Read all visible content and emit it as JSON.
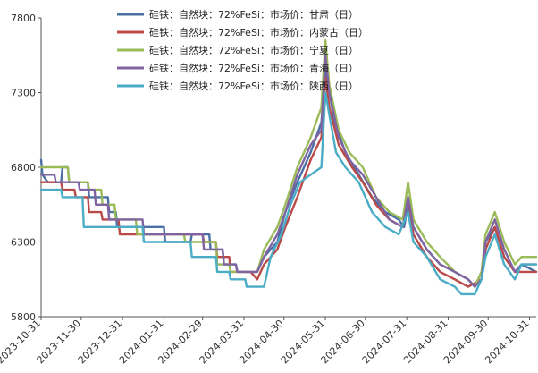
{
  "chart_data": {
    "type": "line",
    "title": "",
    "xlabel": "",
    "ylabel": "",
    "ylim": [
      5800,
      7800
    ],
    "y_ticks": [
      5800,
      6300,
      6800,
      7300,
      7800
    ],
    "x_ticks": [
      "2023-10-31",
      "2023-11-30",
      "2023-12-31",
      "2024-01-31",
      "2024-02-29",
      "2024-03-31",
      "2024-04-30",
      "2024-05-31",
      "2024-06-30",
      "2024-07-31",
      "2024-08-31",
      "2024-09-30",
      "2024-10-31"
    ],
    "xlim": [
      "2023-10-31",
      "2024-11-05"
    ],
    "grid": false,
    "legend_position": "top",
    "series": [
      {
        "name": "硅铁：自然块：72%FeSi：市场价：甘肃（日）",
        "color": "#4a6fa5",
        "points": [
          [
            "2023-10-31",
            6850
          ],
          [
            "2023-11-01",
            6750
          ],
          [
            "2023-11-05",
            6700
          ],
          [
            "2023-11-15",
            6700
          ],
          [
            "2023-11-16",
            6800
          ],
          [
            "2023-11-20",
            6800
          ],
          [
            "2023-11-21",
            6700
          ],
          [
            "2023-12-05",
            6700
          ],
          [
            "2023-12-06",
            6600
          ],
          [
            "2023-12-20",
            6600
          ],
          [
            "2023-12-21",
            6500
          ],
          [
            "2023-12-26",
            6500
          ],
          [
            "2023-12-27",
            6400
          ],
          [
            "2024-01-31",
            6400
          ],
          [
            "2024-02-01",
            6300
          ],
          [
            "2024-02-20",
            6300
          ],
          [
            "2024-02-21",
            6350
          ],
          [
            "2024-03-05",
            6350
          ],
          [
            "2024-03-06",
            6250
          ],
          [
            "2024-03-15",
            6250
          ],
          [
            "2024-03-16",
            6150
          ],
          [
            "2024-03-25",
            6150
          ],
          [
            "2024-03-26",
            6100
          ],
          [
            "2024-04-10",
            6100
          ],
          [
            "2024-04-15",
            6200
          ],
          [
            "2024-04-25",
            6300
          ],
          [
            "2024-05-01",
            6500
          ],
          [
            "2024-05-10",
            6700
          ],
          [
            "2024-05-20",
            6900
          ],
          [
            "2024-05-28",
            7100
          ],
          [
            "2024-05-31",
            7450
          ],
          [
            "2024-06-03",
            7300
          ],
          [
            "2024-06-07",
            7100
          ],
          [
            "2024-06-15",
            6900
          ],
          [
            "2024-06-25",
            6750
          ],
          [
            "2024-07-05",
            6600
          ],
          [
            "2024-07-15",
            6500
          ],
          [
            "2024-07-25",
            6450
          ],
          [
            "2024-07-29",
            6400
          ],
          [
            "2024-08-01",
            6550
          ],
          [
            "2024-08-05",
            6400
          ],
          [
            "2024-08-15",
            6250
          ],
          [
            "2024-08-25",
            6150
          ],
          [
            "2024-09-05",
            6100
          ],
          [
            "2024-09-15",
            6050
          ],
          [
            "2024-09-20",
            6000
          ],
          [
            "2024-09-25",
            6100
          ],
          [
            "2024-09-28",
            6300
          ],
          [
            "2024-10-05",
            6400
          ],
          [
            "2024-10-12",
            6200
          ],
          [
            "2024-10-20",
            6100
          ],
          [
            "2024-10-25",
            6150
          ],
          [
            "2024-11-05",
            6100
          ]
        ]
      },
      {
        "name": "硅铁：自然块：72%FeSi：市场价：内蒙古（日）",
        "color": "#b94a48",
        "points": [
          [
            "2023-10-31",
            6700
          ],
          [
            "2023-11-15",
            6700
          ],
          [
            "2023-11-16",
            6650
          ],
          [
            "2023-11-25",
            6650
          ],
          [
            "2023-11-26",
            6600
          ],
          [
            "2023-12-05",
            6600
          ],
          [
            "2023-12-06",
            6500
          ],
          [
            "2023-12-15",
            6500
          ],
          [
            "2023-12-16",
            6450
          ],
          [
            "2023-12-28",
            6450
          ],
          [
            "2023-12-29",
            6350
          ],
          [
            "2024-02-29",
            6350
          ],
          [
            "2024-03-01",
            6300
          ],
          [
            "2024-03-10",
            6300
          ],
          [
            "2024-03-11",
            6200
          ],
          [
            "2024-03-20",
            6200
          ],
          [
            "2024-03-21",
            6100
          ],
          [
            "2024-04-05",
            6100
          ],
          [
            "2024-04-10",
            6050
          ],
          [
            "2024-04-15",
            6150
          ],
          [
            "2024-04-25",
            6250
          ],
          [
            "2024-05-01",
            6400
          ],
          [
            "2024-05-10",
            6600
          ],
          [
            "2024-05-20",
            6850
          ],
          [
            "2024-05-28",
            7000
          ],
          [
            "2024-05-31",
            7400
          ],
          [
            "2024-06-03",
            7200
          ],
          [
            "2024-06-10",
            6950
          ],
          [
            "2024-06-20",
            6800
          ],
          [
            "2024-06-28",
            6700
          ],
          [
            "2024-07-08",
            6550
          ],
          [
            "2024-07-18",
            6450
          ],
          [
            "2024-07-28",
            6400
          ],
          [
            "2024-08-01",
            6600
          ],
          [
            "2024-08-05",
            6350
          ],
          [
            "2024-08-15",
            6200
          ],
          [
            "2024-08-25",
            6100
          ],
          [
            "2024-09-05",
            6050
          ],
          [
            "2024-09-15",
            6000
          ],
          [
            "2024-09-25",
            6050
          ],
          [
            "2024-09-28",
            6250
          ],
          [
            "2024-10-05",
            6400
          ],
          [
            "2024-10-12",
            6200
          ],
          [
            "2024-10-20",
            6100
          ],
          [
            "2024-10-25",
            6100
          ],
          [
            "2024-11-05",
            6100
          ]
        ]
      },
      {
        "name": "硅铁：自然块：72%FeSi：市场价：宁夏（日）",
        "color": "#9bbb59",
        "points": [
          [
            "2023-10-31",
            6800
          ],
          [
            "2023-11-20",
            6800
          ],
          [
            "2023-11-21",
            6700
          ],
          [
            "2023-12-05",
            6700
          ],
          [
            "2023-12-06",
            6650
          ],
          [
            "2023-12-15",
            6650
          ],
          [
            "2023-12-16",
            6550
          ],
          [
            "2023-12-25",
            6550
          ],
          [
            "2023-12-26",
            6450
          ],
          [
            "2024-01-10",
            6450
          ],
          [
            "2024-01-11",
            6350
          ],
          [
            "2024-02-15",
            6350
          ],
          [
            "2024-02-16",
            6300
          ],
          [
            "2024-03-10",
            6300
          ],
          [
            "2024-03-11",
            6150
          ],
          [
            "2024-03-20",
            6150
          ],
          [
            "2024-03-21",
            6100
          ],
          [
            "2024-04-10",
            6100
          ],
          [
            "2024-04-15",
            6250
          ],
          [
            "2024-04-25",
            6400
          ],
          [
            "2024-05-01",
            6550
          ],
          [
            "2024-05-10",
            6800
          ],
          [
            "2024-05-20",
            7000
          ],
          [
            "2024-05-28",
            7200
          ],
          [
            "2024-05-31",
            7650
          ],
          [
            "2024-06-03",
            7350
          ],
          [
            "2024-06-10",
            7050
          ],
          [
            "2024-06-18",
            6900
          ],
          [
            "2024-06-28",
            6800
          ],
          [
            "2024-07-08",
            6600
          ],
          [
            "2024-07-18",
            6500
          ],
          [
            "2024-07-28",
            6450
          ],
          [
            "2024-08-01",
            6700
          ],
          [
            "2024-08-05",
            6450
          ],
          [
            "2024-08-15",
            6300
          ],
          [
            "2024-08-25",
            6200
          ],
          [
            "2024-09-05",
            6100
          ],
          [
            "2024-09-15",
            6050
          ],
          [
            "2024-09-20",
            6000
          ],
          [
            "2024-09-25",
            6100
          ],
          [
            "2024-09-28",
            6350
          ],
          [
            "2024-10-05",
            6500
          ],
          [
            "2024-10-12",
            6300
          ],
          [
            "2024-10-20",
            6150
          ],
          [
            "2024-10-25",
            6200
          ],
          [
            "2024-11-05",
            6200
          ]
        ]
      },
      {
        "name": "硅铁：自然块：72%FeSi：市场价：青海（日）",
        "color": "#8064a2",
        "points": [
          [
            "2023-10-31",
            6750
          ],
          [
            "2023-11-10",
            6750
          ],
          [
            "2023-11-11",
            6700
          ],
          [
            "2023-11-28",
            6700
          ],
          [
            "2023-11-29",
            6650
          ],
          [
            "2023-12-10",
            6650
          ],
          [
            "2023-12-11",
            6550
          ],
          [
            "2023-12-20",
            6550
          ],
          [
            "2023-12-21",
            6450
          ],
          [
            "2024-01-15",
            6450
          ],
          [
            "2024-01-16",
            6350
          ],
          [
            "2024-02-29",
            6350
          ],
          [
            "2024-03-01",
            6250
          ],
          [
            "2024-03-15",
            6250
          ],
          [
            "2024-03-16",
            6150
          ],
          [
            "2024-03-25",
            6150
          ],
          [
            "2024-03-26",
            6100
          ],
          [
            "2024-04-10",
            6100
          ],
          [
            "2024-04-15",
            6200
          ],
          [
            "2024-04-25",
            6350
          ],
          [
            "2024-05-01",
            6500
          ],
          [
            "2024-05-10",
            6750
          ],
          [
            "2024-05-20",
            6950
          ],
          [
            "2024-05-28",
            7050
          ],
          [
            "2024-05-31",
            7550
          ],
          [
            "2024-06-03",
            7300
          ],
          [
            "2024-06-10",
            7000
          ],
          [
            "2024-06-18",
            6850
          ],
          [
            "2024-06-28",
            6750
          ],
          [
            "2024-07-08",
            6600
          ],
          [
            "2024-07-18",
            6450
          ],
          [
            "2024-07-28",
            6400
          ],
          [
            "2024-08-01",
            6600
          ],
          [
            "2024-08-05",
            6400
          ],
          [
            "2024-08-15",
            6250
          ],
          [
            "2024-08-25",
            6150
          ],
          [
            "2024-09-05",
            6100
          ],
          [
            "2024-09-15",
            6050
          ],
          [
            "2024-09-20",
            6000
          ],
          [
            "2024-09-25",
            6050
          ],
          [
            "2024-09-28",
            6300
          ],
          [
            "2024-10-05",
            6450
          ],
          [
            "2024-10-12",
            6250
          ],
          [
            "2024-10-20",
            6100
          ],
          [
            "2024-10-25",
            6150
          ],
          [
            "2024-11-05",
            6150
          ]
        ]
      },
      {
        "name": "硅铁：自然块：72%FeSi：市场价：陕西（日）",
        "color": "#4bacc6",
        "points": [
          [
            "2023-10-31",
            6650
          ],
          [
            "2023-11-15",
            6650
          ],
          [
            "2023-11-16",
            6600
          ],
          [
            "2023-12-01",
            6600
          ],
          [
            "2023-12-02",
            6400
          ],
          [
            "2024-01-15",
            6400
          ],
          [
            "2024-01-16",
            6300
          ],
          [
            "2024-02-20",
            6300
          ],
          [
            "2024-02-21",
            6200
          ],
          [
            "2024-03-10",
            6200
          ],
          [
            "2024-03-11",
            6100
          ],
          [
            "2024-03-20",
            6100
          ],
          [
            "2024-03-21",
            6050
          ],
          [
            "2024-04-01",
            6050
          ],
          [
            "2024-04-02",
            6000
          ],
          [
            "2024-04-15",
            6000
          ],
          [
            "2024-04-20",
            6200
          ],
          [
            "2024-04-28",
            6350
          ],
          [
            "2024-05-05",
            6550
          ],
          [
            "2024-05-12",
            6700
          ],
          [
            "2024-05-20",
            6750
          ],
          [
            "2024-05-28",
            6800
          ],
          [
            "2024-05-31",
            7300
          ],
          [
            "2024-06-03",
            7150
          ],
          [
            "2024-06-08",
            6900
          ],
          [
            "2024-06-15",
            6800
          ],
          [
            "2024-06-25",
            6700
          ],
          [
            "2024-07-05",
            6500
          ],
          [
            "2024-07-15",
            6400
          ],
          [
            "2024-07-25",
            6350
          ],
          [
            "2024-08-01",
            6500
          ],
          [
            "2024-08-05",
            6300
          ],
          [
            "2024-08-15",
            6200
          ],
          [
            "2024-08-25",
            6050
          ],
          [
            "2024-09-05",
            6000
          ],
          [
            "2024-09-10",
            5950
          ],
          [
            "2024-09-20",
            5950
          ],
          [
            "2024-09-25",
            6050
          ],
          [
            "2024-09-28",
            6200
          ],
          [
            "2024-10-05",
            6350
          ],
          [
            "2024-10-12",
            6150
          ],
          [
            "2024-10-20",
            6050
          ],
          [
            "2024-10-25",
            6150
          ],
          [
            "2024-11-05",
            6150
          ]
        ]
      }
    ]
  }
}
